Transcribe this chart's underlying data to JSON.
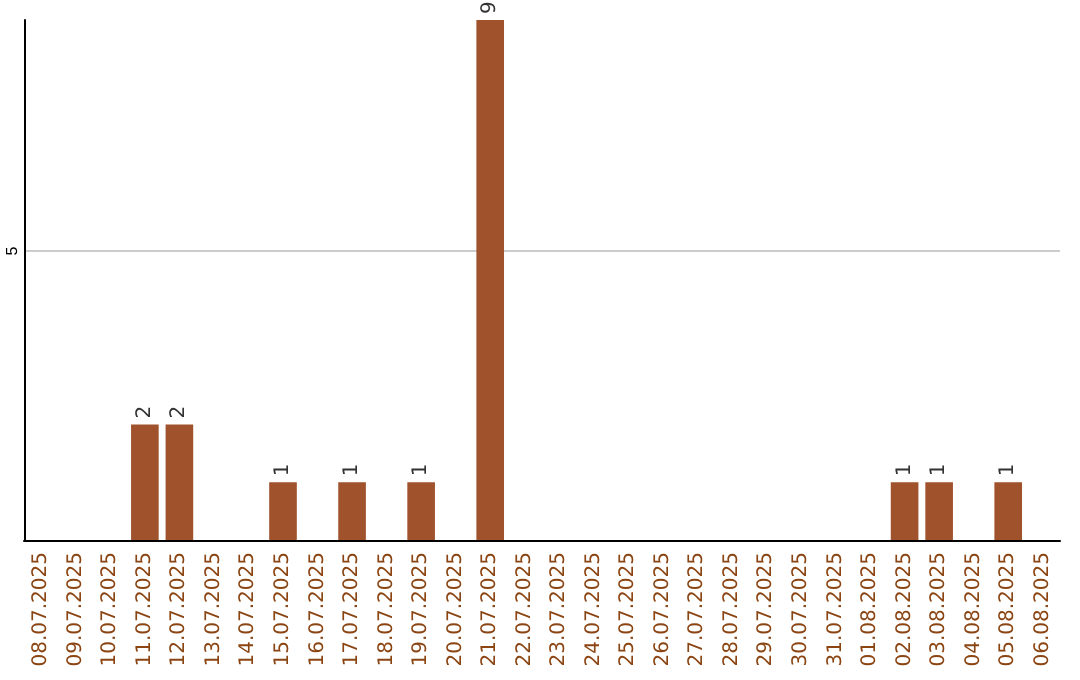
{
  "chart_data": {
    "type": "bar",
    "categories": [
      "08.07.2025",
      "09.07.2025",
      "10.07.2025",
      "11.07.2025",
      "12.07.2025",
      "13.07.2025",
      "14.07.2025",
      "15.07.2025",
      "16.07.2025",
      "17.07.2025",
      "18.07.2025",
      "19.07.2025",
      "20.07.2025",
      "21.07.2025",
      "22.07.2025",
      "23.07.2025",
      "24.07.2025",
      "25.07.2025",
      "26.07.2025",
      "27.07.2025",
      "28.07.2025",
      "29.07.2025",
      "30.07.2025",
      "31.07.2025",
      "01.08.2025",
      "02.08.2025",
      "03.08.2025",
      "04.08.2025",
      "05.08.2025",
      "06.08.2025"
    ],
    "values": [
      0,
      0,
      0,
      2,
      2,
      0,
      0,
      1,
      0,
      1,
      0,
      1,
      0,
      9,
      0,
      0,
      0,
      0,
      0,
      0,
      0,
      0,
      0,
      0,
      0,
      1,
      1,
      0,
      1,
      0
    ],
    "color": "#a0522d",
    "ylim": [
      0,
      9
    ],
    "yticks": [
      5
    ],
    "grid": "y",
    "value_labels": [
      null,
      null,
      null,
      "2",
      "2",
      null,
      null,
      "1",
      null,
      "1",
      null,
      "1",
      null,
      "9",
      null,
      null,
      null,
      null,
      null,
      null,
      null,
      null,
      null,
      null,
      null,
      "1",
      "1",
      null,
      "1",
      null
    ]
  }
}
